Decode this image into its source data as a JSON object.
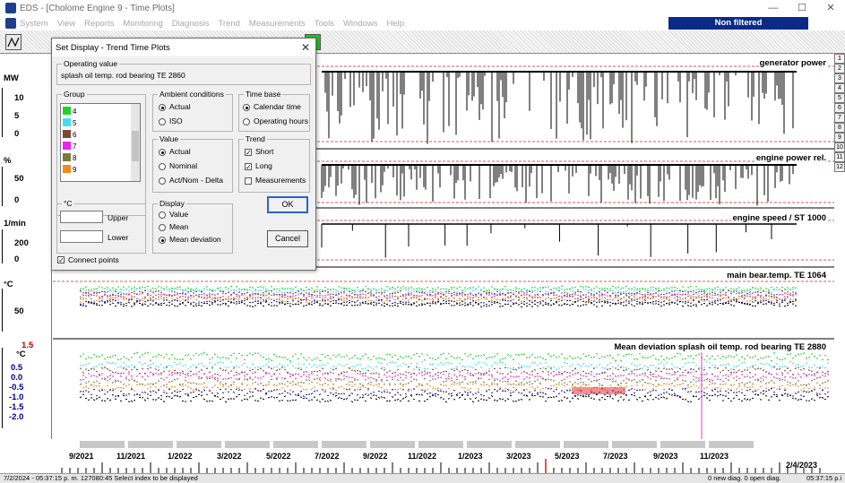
{
  "window": {
    "title": "EDS - [Cholome Engine 9 - Time Plots]",
    "controls": [
      "—",
      "☐",
      "✕"
    ]
  },
  "menu": {
    "items": [
      "System",
      "View",
      "Reports",
      "Monitoring",
      "Diagnosis",
      "Trend",
      "Measurements",
      "Tools",
      "Windows",
      "Help"
    ],
    "filter_status": "Non filtered",
    "filter_color": "#0a2a86"
  },
  "toolbar": {
    "trend_icon": "trend-plot-icon",
    "m_button": "M"
  },
  "axes": {
    "mw_unit": "MW",
    "mw_ticks": [
      "10",
      "5",
      "0"
    ],
    "pct_unit": "%",
    "pct_ticks": [
      "50",
      "0"
    ],
    "rpm_unit": "1/min",
    "rpm_ticks": [
      "200",
      "0"
    ],
    "temp_unit": "°C",
    "temp_ticks": [
      "50"
    ],
    "dev_top": "1.5",
    "dev_unit": "°C",
    "dev_ticks": [
      "0.5",
      "0.0",
      "-0.5",
      "-1.0",
      "-1.5",
      "-2.0"
    ]
  },
  "index_column": [
    "1",
    "2",
    "3",
    "4",
    "5",
    "6",
    "7",
    "8",
    "9",
    "10",
    "11",
    "12"
  ],
  "plots": {
    "p1": "generator power",
    "p2": "engine power rel.",
    "p3": "engine speed / ST 1000",
    "p4": "main bear.temp.  TE 1064",
    "p5": "Mean deviation splash oil temp. rod bearing TE 2880"
  },
  "time_axis": {
    "labels": [
      "9/2021",
      "11/2021",
      "1/2022",
      "3/2022",
      "5/2022",
      "7/2022",
      "9/2022",
      "11/2022",
      "1/2023",
      "3/2023",
      "5/2023",
      "7/2023",
      "9/2023",
      "11/2023"
    ],
    "end_date": "2/4/2023"
  },
  "statusbar": {
    "left": "7/2/2024 - 05:37:15 p. m.  127080:45  Select index to be displayed",
    "diag": "0 new diag.  0 open diag.",
    "clock": "05:37:15 p.i"
  },
  "dialog": {
    "title": "Set Display - Trend Time Plots",
    "close": "✕",
    "operating_value_label": "Operating value",
    "operating_value": "splash oil temp. rod bearing TE 2860",
    "group_label": "Group",
    "groups": [
      {
        "id": "4",
        "color": "#22d422"
      },
      {
        "id": "5",
        "color": "#3ee0f0"
      },
      {
        "id": "6",
        "color": "#7a4a32"
      },
      {
        "id": "7",
        "color": "#f020f0"
      },
      {
        "id": "8",
        "color": "#7a7a3a"
      },
      {
        "id": "9",
        "color": "#f08a20"
      }
    ],
    "ambient_label": "Ambient conditions",
    "ambient_options": [
      "Actual",
      "ISO"
    ],
    "ambient_selected": "Actual",
    "timebase_label": "Time base",
    "timebase_options": [
      "Calendar time",
      "Operating hours"
    ],
    "timebase_selected": "Calendar time",
    "value_label": "Value",
    "value_options": [
      "Actual",
      "Nominal",
      "Act/Nom - Delta"
    ],
    "value_selected": "Actual",
    "trend_label": "Trend",
    "trend_options": [
      "Short",
      "Long",
      "Measurements"
    ],
    "trend_checked": [
      "Short",
      "Long"
    ],
    "unit_label": "°C",
    "upper_label": "Upper",
    "lower_label": "Lower",
    "upper_value": "",
    "lower_value": "",
    "display_label": "Display",
    "display_options": [
      "Value",
      "Mean",
      "Mean deviation"
    ],
    "display_selected": "Mean deviation",
    "ok_label": "OK",
    "cancel_label": "Cancel",
    "connect_label": "Connect points",
    "connect_checked": true
  }
}
